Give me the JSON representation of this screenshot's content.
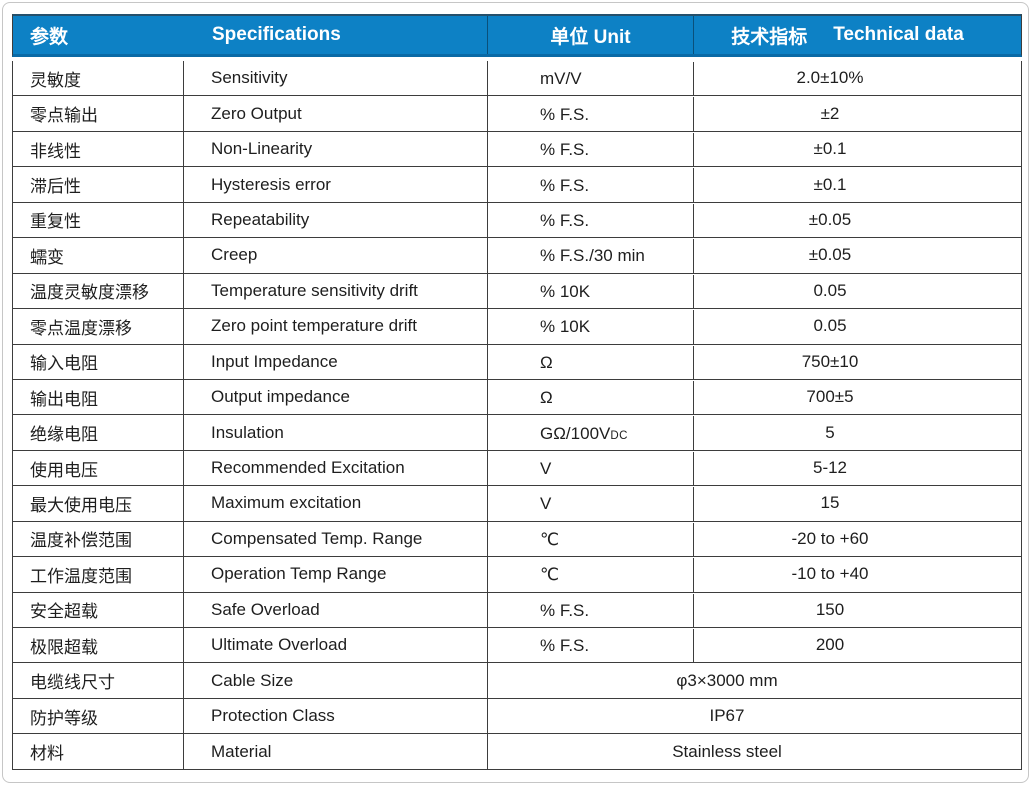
{
  "colors": {
    "header_bg": "#0d81c5",
    "header_text": "#ffffff",
    "body_text": "#1e1e1e",
    "border": "#3d3d3d"
  },
  "table": {
    "header": {
      "param": "参数",
      "specifications": "Specifications",
      "unit": "单位 Unit",
      "technical_cn": "技术指标",
      "technical_en": "Technical data"
    },
    "rows": [
      {
        "param": "灵敏度",
        "spec": "Sensitivity",
        "unit": "mV/V",
        "value": "2.0±10%"
      },
      {
        "param": "零点输出",
        "spec": "Zero Output",
        "unit": "% F.S.",
        "value": "±2"
      },
      {
        "param": "非线性",
        "spec": "Non-Linearity",
        "unit": "% F.S.",
        "value": "±0.1"
      },
      {
        "param": "滞后性",
        "spec": "Hysteresis error",
        "unit": "% F.S.",
        "value": "±0.1"
      },
      {
        "param": "重复性",
        "spec": "Repeatability",
        "unit": "% F.S.",
        "value": "±0.05"
      },
      {
        "param": "蠕变",
        "spec": "Creep",
        "unit": "% F.S./30 min",
        "value": "±0.05"
      },
      {
        "param": "温度灵敏度漂移",
        "spec": "Temperature sensitivity drift",
        "unit": "% 10K",
        "value": "0.05"
      },
      {
        "param": "零点温度漂移",
        "spec": "Zero point temperature drift",
        "unit": "% 10K",
        "value": "0.05"
      },
      {
        "param": "输入电阻",
        "spec": "Input Impedance",
        "unit": "Ω",
        "value": "750±10"
      },
      {
        "param": "输出电阻",
        "spec": "Output impedance",
        "unit": "Ω",
        "value": "700±5"
      },
      {
        "param": "绝缘电阻",
        "spec": "Insulation",
        "unit": "GΩ/100V",
        "unit_sub": "DC",
        "value": "5"
      },
      {
        "param": "使用电压",
        "spec": "Recommended Excitation",
        "unit": "V",
        "value": "5-12"
      },
      {
        "param": "最大使用电压",
        "spec": "Maximum excitation",
        "unit": "V",
        "value": "15"
      },
      {
        "param": "温度补偿范围",
        "spec": "Compensated Temp. Range",
        "unit": "℃",
        "value": "-20 to +60"
      },
      {
        "param": "工作温度范围",
        "spec": "Operation Temp Range",
        "unit": "℃",
        "value": "-10 to +40"
      },
      {
        "param": "安全超载",
        "spec": "Safe Overload",
        "unit": "% F.S.",
        "value": "150"
      },
      {
        "param": "极限超载",
        "spec": "Ultimate Overload",
        "unit": "% F.S.",
        "value": "200"
      },
      {
        "param": "电缆线尺寸",
        "spec": "Cable Size",
        "merged_value": "φ3×3000 mm"
      },
      {
        "param": "防护等级",
        "spec": "Protection Class",
        "merged_value": "IP67"
      },
      {
        "param": "材料",
        "spec": "Material",
        "merged_value": "Stainless steel"
      }
    ]
  }
}
